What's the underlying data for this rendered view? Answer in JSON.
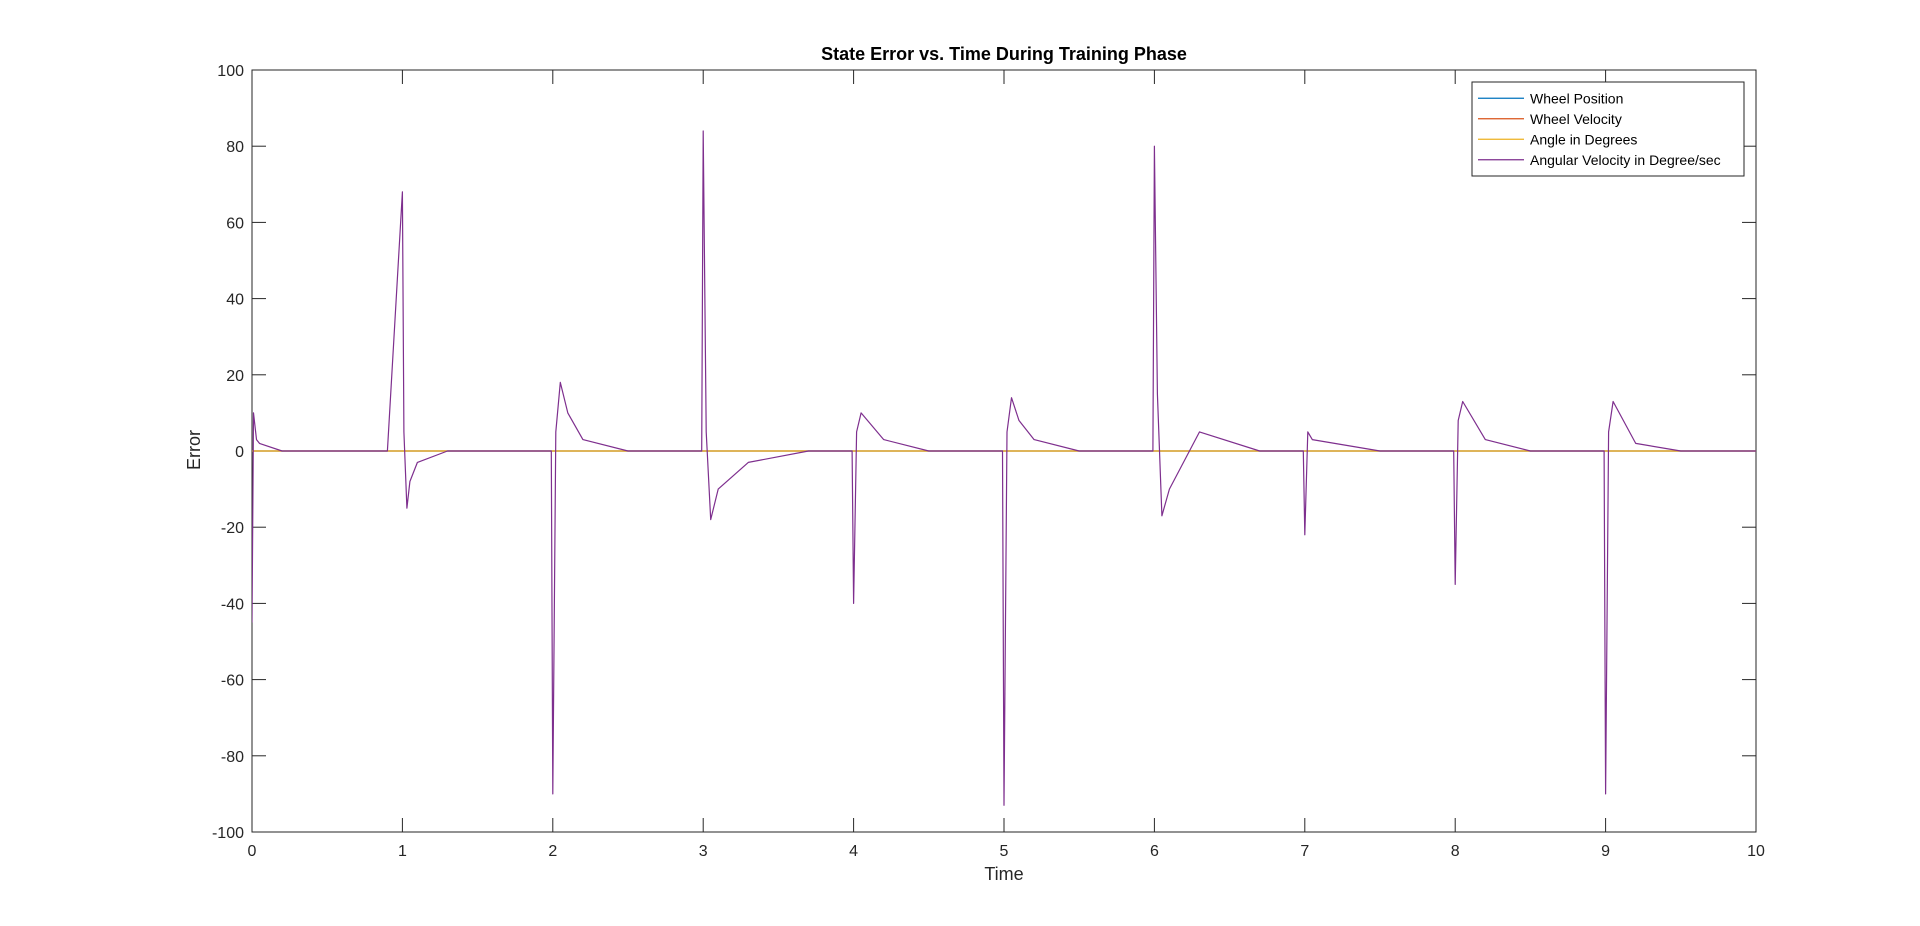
{
  "chart_data": {
    "type": "line",
    "title": "State Error vs. Time During Training Phase",
    "xlabel": "Time",
    "ylabel": "Error",
    "xlim": [
      0,
      10
    ],
    "ylim": [
      -100,
      100
    ],
    "xticks": [
      0,
      1,
      2,
      3,
      4,
      5,
      6,
      7,
      8,
      9,
      10
    ],
    "yticks": [
      -100,
      -80,
      -60,
      -40,
      -20,
      0,
      20,
      40,
      60,
      80,
      100
    ],
    "grid": false,
    "legend_location": "top-right",
    "series": [
      {
        "name": "Wheel Position",
        "color": "#0072BD",
        "description": "near zero throughout",
        "x": [
          0,
          1,
          2,
          3,
          4,
          5,
          6,
          7,
          8,
          9,
          10
        ],
        "y": [
          0,
          0,
          0,
          0,
          0,
          0,
          0,
          0,
          0,
          0,
          0
        ]
      },
      {
        "name": "Wheel Velocity",
        "color": "#D95319",
        "x": [
          0,
          1,
          2,
          3,
          4,
          5,
          6,
          7,
          8,
          9,
          10
        ],
        "y": [
          0,
          0,
          0,
          0,
          0,
          0,
          0,
          0,
          0,
          0,
          0
        ]
      },
      {
        "name": "Angle in Degrees",
        "color": "#EDB120",
        "x": [
          0,
          1,
          2,
          3,
          4,
          5,
          6,
          7,
          8,
          9,
          10
        ],
        "y": [
          0,
          0,
          0,
          0,
          0,
          0,
          0,
          0,
          0,
          0,
          0
        ]
      },
      {
        "name": "Angular Velocity in Degree/sec",
        "color": "#7E2F8E",
        "x": [
          0,
          0.01,
          0.03,
          0.05,
          0.2,
          0.5,
          0.9,
          1.0,
          1.01,
          1.03,
          1.05,
          1.1,
          1.3,
          1.7,
          1.99,
          2.0,
          2.02,
          2.05,
          2.1,
          2.2,
          2.5,
          2.9,
          2.99,
          3.0,
          3.02,
          3.05,
          3.1,
          3.3,
          3.7,
          3.99,
          4.0,
          4.02,
          4.05,
          4.2,
          4.5,
          4.9,
          4.99,
          5.0,
          5.02,
          5.05,
          5.1,
          5.2,
          5.5,
          5.9,
          5.99,
          6.0,
          6.02,
          6.05,
          6.1,
          6.3,
          6.7,
          6.99,
          7.0,
          7.02,
          7.05,
          7.5,
          7.99,
          8.0,
          8.02,
          8.05,
          8.2,
          8.5,
          8.99,
          9.0,
          9.02,
          9.05,
          9.2,
          9.5,
          10.0
        ],
        "y": [
          -45,
          10,
          3,
          2,
          0,
          0,
          0,
          68,
          5,
          -15,
          -8,
          -3,
          0,
          0,
          0,
          -90,
          5,
          18,
          10,
          3,
          0,
          0,
          0,
          84,
          5,
          -18,
          -10,
          -3,
          0,
          0,
          -40,
          5,
          10,
          3,
          0,
          0,
          0,
          -93,
          5,
          14,
          8,
          3,
          0,
          0,
          0,
          80,
          15,
          -17,
          -10,
          5,
          0,
          0,
          -22,
          5,
          3,
          0,
          0,
          -35,
          8,
          13,
          3,
          0,
          0,
          -90,
          5,
          13,
          2,
          0,
          0
        ]
      }
    ]
  }
}
